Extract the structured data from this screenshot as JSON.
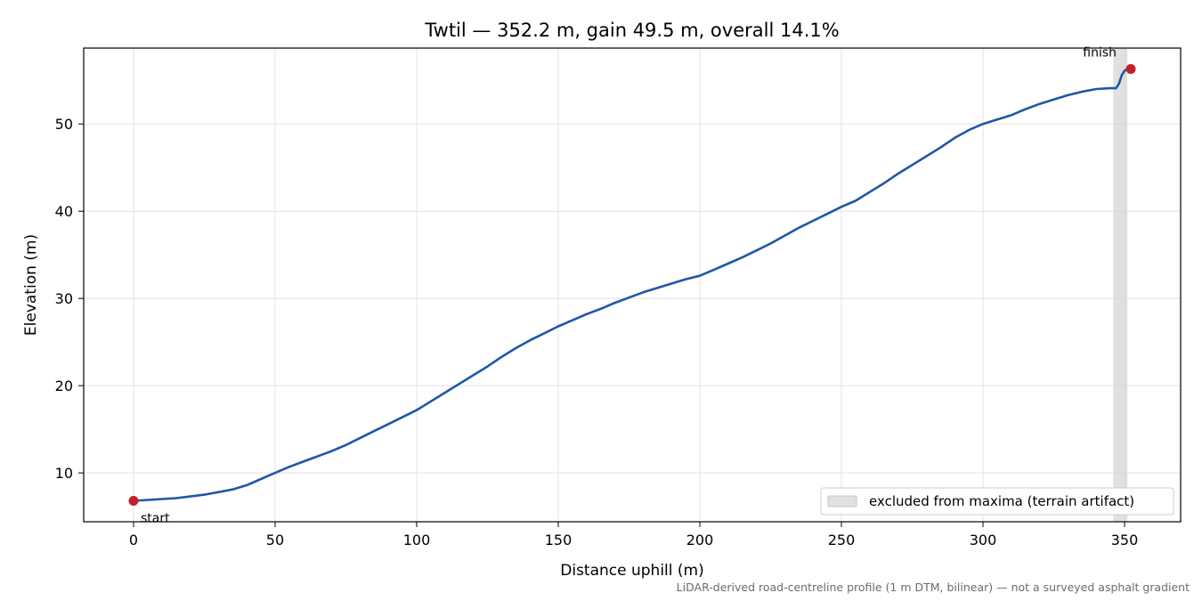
{
  "chart_data": {
    "type": "line",
    "title": "Twtil — 352.2 m, gain 49.5 m, overall 14.1%",
    "xlabel": "Distance uphill (m)",
    "ylabel": "Elevation (m)",
    "xlim": [
      -17.6,
      369.8
    ],
    "ylim": [
      4.4,
      58.7
    ],
    "xticks": [
      0,
      50,
      100,
      150,
      200,
      250,
      300,
      350
    ],
    "yticks": [
      10,
      20,
      30,
      40,
      50
    ],
    "grid": true,
    "series": [
      {
        "color": "#1f57a8",
        "x": [
          0,
          5,
          10,
          15,
          20,
          25,
          30,
          35,
          40,
          45,
          50,
          55,
          60,
          65,
          70,
          75,
          80,
          85,
          90,
          95,
          100,
          105,
          110,
          115,
          120,
          125,
          130,
          135,
          140,
          145,
          150,
          155,
          160,
          165,
          170,
          175,
          180,
          185,
          190,
          195,
          200,
          205,
          210,
          215,
          220,
          225,
          230,
          235,
          240,
          245,
          250,
          255,
          260,
          265,
          270,
          275,
          280,
          285,
          290,
          295,
          300,
          305,
          310,
          315,
          320,
          325,
          330,
          335,
          340,
          345,
          347,
          348,
          349,
          350,
          351,
          352.2
        ],
        "y": [
          6.8,
          6.9,
          7.0,
          7.1,
          7.3,
          7.5,
          7.8,
          8.1,
          8.6,
          9.3,
          10.0,
          10.7,
          11.3,
          11.9,
          12.5,
          13.2,
          14.0,
          14.8,
          15.6,
          16.4,
          17.2,
          18.2,
          19.2,
          20.2,
          21.2,
          22.2,
          23.3,
          24.3,
          25.2,
          26.0,
          26.8,
          27.5,
          28.2,
          28.8,
          29.5,
          30.1,
          30.7,
          31.2,
          31.7,
          32.2,
          32.6,
          33.3,
          34.0,
          34.7,
          35.5,
          36.3,
          37.2,
          38.1,
          38.9,
          39.7,
          40.5,
          41.2,
          42.2,
          43.2,
          44.3,
          45.3,
          46.3,
          47.3,
          48.4,
          49.3,
          50.0,
          50.5,
          51.0,
          51.7,
          52.3,
          52.8,
          53.3,
          53.7,
          54.0,
          54.1,
          54.1,
          54.6,
          55.6,
          56.1,
          56.3,
          56.3
        ]
      }
    ],
    "markers": [
      {
        "x": 0,
        "y": 6.8,
        "label": "start",
        "color": "#c0202a"
      },
      {
        "x": 352.2,
        "y": 56.3,
        "label": "finish",
        "color": "#c0202a"
      }
    ],
    "excluded_band": {
      "x": [
        346,
        351
      ],
      "color": "#d6d6d6"
    },
    "legend": {
      "placement": "lower-right",
      "entries": [
        "excluded from maxima (terrain artifact)"
      ]
    },
    "footnote": "LiDAR-derived road-centreline profile (1 m DTM, bilinear) — not a surveyed asphalt gradient"
  }
}
